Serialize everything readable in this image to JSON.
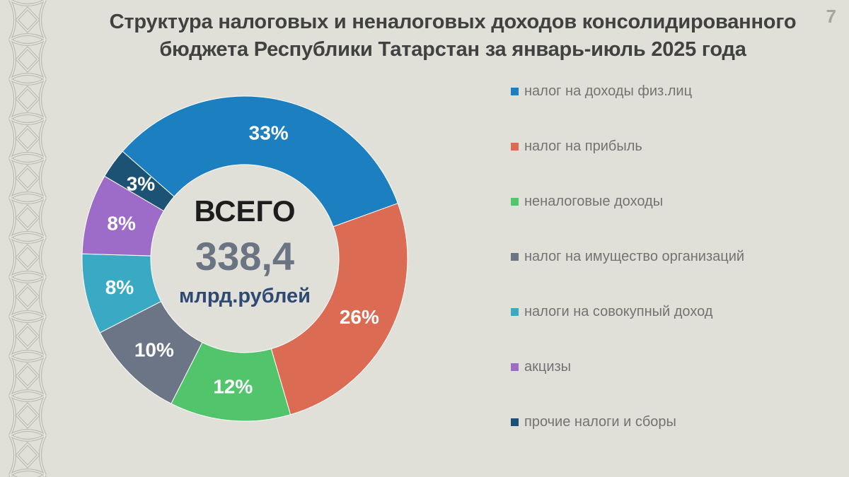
{
  "page_number": "7",
  "title_lines": [
    "Структура налоговых и неналоговых доходов консолидированного",
    "бюджета Республики Татарстан за январь-июль 2025 года"
  ],
  "center": {
    "label": "ВСЕГО",
    "value": "338,4",
    "unit": "млрд.рублей"
  },
  "chart_data": {
    "type": "pie",
    "donut": true,
    "title": "Структура налоговых и неналоговых доходов консолидированного бюджета Республики Татарстан за январь-июль 2025 года",
    "legend_position": "right",
    "slices": [
      {
        "label": "налог на доходы физ.лиц",
        "value": 33,
        "value_label": "33%",
        "color": "#1b7fc0"
      },
      {
        "label": "налог на прибыль",
        "value": 26,
        "value_label": "26%",
        "color": "#db6b53"
      },
      {
        "label": "неналоговые доходы",
        "value": 12,
        "value_label": "12%",
        "color": "#52c46b"
      },
      {
        "label": "налог на имущество организаций",
        "value": 10,
        "value_label": "10%",
        "color": "#6c7585"
      },
      {
        "label": "налоги на совокупный доход",
        "value": 8,
        "value_label": "8%",
        "color": "#3aa9c4"
      },
      {
        "label": "акцизы",
        "value": 8,
        "value_label": "8%",
        "color": "#9d6cc8"
      },
      {
        "label": "прочие налоги и сборы",
        "value": 3,
        "value_label": "3%",
        "color": "#1c5273"
      }
    ]
  }
}
